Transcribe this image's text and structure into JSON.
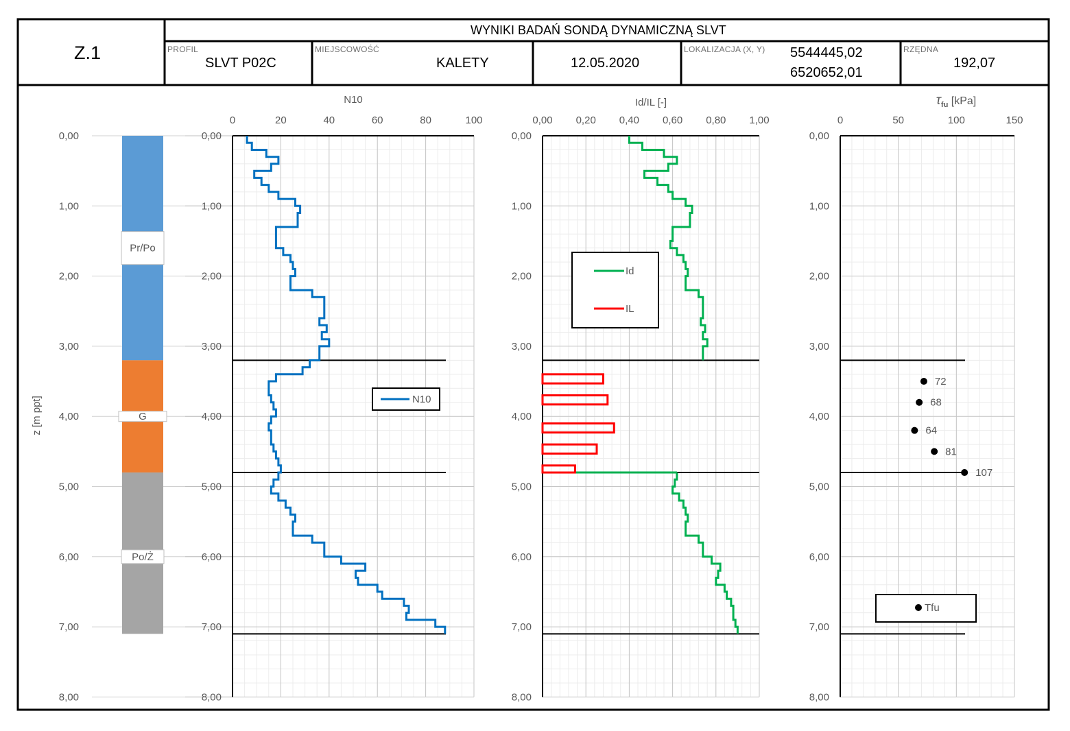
{
  "header": {
    "code": "Z.1",
    "title": "WYNIKI BADAŃ SONDĄ DYNAMICZNĄ SLVT",
    "profil_label": "PROFIL",
    "profil_value": "SLVT P02C",
    "miejscowosc_label": "MIEJSCOWOŚĆ",
    "miejscowosc_value": "KALETY",
    "date": "12.05.2020",
    "lokalizacja_label": "LOKALIZACJA (X, Y)",
    "x_value": "5544445,02",
    "y_value": "6520652,01",
    "rzedna_label": "RZĘDNA",
    "rzedna_value": "192,07"
  },
  "chart_data": [
    {
      "type": "table",
      "name": "profile",
      "ylabel": "z [m ppt]",
      "ylim": [
        0,
        8
      ],
      "yticks": [
        "0,00",
        "1,00",
        "2,00",
        "3,00",
        "4,00",
        "5,00",
        "6,00",
        "7,00",
        "8,00"
      ],
      "layers": [
        {
          "from": 0.0,
          "to": 3.2,
          "label": "Pr/Po",
          "label_at": 1.6,
          "color": "#5b9bd5"
        },
        {
          "from": 3.2,
          "to": 4.8,
          "label": "G",
          "label_at": 4.0,
          "color": "#ed7d31"
        },
        {
          "from": 4.8,
          "to": 7.1,
          "label": "Po/Ż",
          "label_at": 6.0,
          "color": "#a5a5a5"
        }
      ]
    },
    {
      "type": "line",
      "name": "N10",
      "title": "N10",
      "xlim": [
        0,
        100
      ],
      "xticks": [
        "0",
        "20",
        "40",
        "60",
        "80",
        "100"
      ],
      "ylim": [
        0,
        8
      ],
      "yticks": [
        "0,00",
        "1,00",
        "2,00",
        "3,00",
        "4,00",
        "5,00",
        "6,00",
        "7,00",
        "8,00"
      ],
      "boundaries": [
        3.2,
        4.8,
        7.1
      ],
      "legend": {
        "position": "right-middle",
        "entries": [
          "N10"
        ]
      },
      "color": "#0070c0",
      "series": [
        {
          "name": "N10",
          "steps": [
            {
              "from": 0.0,
              "to": 0.1,
              "value": 6
            },
            {
              "from": 0.1,
              "to": 0.2,
              "value": 8
            },
            {
              "from": 0.2,
              "to": 0.3,
              "value": 14
            },
            {
              "from": 0.3,
              "to": 0.4,
              "value": 19
            },
            {
              "from": 0.4,
              "to": 0.5,
              "value": 16
            },
            {
              "from": 0.5,
              "to": 0.6,
              "value": 9
            },
            {
              "from": 0.6,
              "to": 0.7,
              "value": 12
            },
            {
              "from": 0.7,
              "to": 0.8,
              "value": 15
            },
            {
              "from": 0.8,
              "to": 0.9,
              "value": 19
            },
            {
              "from": 0.9,
              "to": 1.0,
              "value": 26
            },
            {
              "from": 1.0,
              "to": 1.1,
              "value": 28
            },
            {
              "from": 1.1,
              "to": 1.3,
              "value": 27
            },
            {
              "from": 1.3,
              "to": 1.6,
              "value": 18
            },
            {
              "from": 1.6,
              "to": 1.7,
              "value": 21
            },
            {
              "from": 1.7,
              "to": 1.8,
              "value": 24
            },
            {
              "from": 1.8,
              "to": 1.9,
              "value": 25
            },
            {
              "from": 1.9,
              "to": 2.0,
              "value": 26
            },
            {
              "from": 2.0,
              "to": 2.2,
              "value": 24
            },
            {
              "from": 2.2,
              "to": 2.3,
              "value": 33
            },
            {
              "from": 2.3,
              "to": 2.6,
              "value": 38
            },
            {
              "from": 2.6,
              "to": 2.7,
              "value": 36
            },
            {
              "from": 2.7,
              "to": 2.8,
              "value": 39
            },
            {
              "from": 2.8,
              "to": 2.9,
              "value": 37
            },
            {
              "from": 2.9,
              "to": 3.0,
              "value": 40
            },
            {
              "from": 3.0,
              "to": 3.2,
              "value": 36
            },
            {
              "from": 3.2,
              "to": 3.3,
              "value": 32
            },
            {
              "from": 3.3,
              "to": 3.4,
              "value": 29
            },
            {
              "from": 3.4,
              "to": 3.5,
              "value": 18
            },
            {
              "from": 3.5,
              "to": 3.7,
              "value": 15
            },
            {
              "from": 3.7,
              "to": 3.8,
              "value": 16
            },
            {
              "from": 3.8,
              "to": 3.9,
              "value": 17
            },
            {
              "from": 3.9,
              "to": 4.0,
              "value": 18
            },
            {
              "from": 4.0,
              "to": 4.1,
              "value": 16
            },
            {
              "from": 4.1,
              "to": 4.2,
              "value": 15
            },
            {
              "from": 4.2,
              "to": 4.4,
              "value": 16
            },
            {
              "from": 4.4,
              "to": 4.5,
              "value": 17
            },
            {
              "from": 4.5,
              "to": 4.6,
              "value": 18
            },
            {
              "from": 4.6,
              "to": 4.7,
              "value": 19
            },
            {
              "from": 4.7,
              "to": 4.8,
              "value": 20
            },
            {
              "from": 4.8,
              "to": 4.9,
              "value": 19
            },
            {
              "from": 4.9,
              "to": 5.0,
              "value": 17
            },
            {
              "from": 5.0,
              "to": 5.1,
              "value": 16
            },
            {
              "from": 5.1,
              "to": 5.2,
              "value": 19
            },
            {
              "from": 5.2,
              "to": 5.3,
              "value": 22
            },
            {
              "from": 5.3,
              "to": 5.4,
              "value": 24
            },
            {
              "from": 5.4,
              "to": 5.5,
              "value": 26
            },
            {
              "from": 5.5,
              "to": 5.7,
              "value": 25
            },
            {
              "from": 5.7,
              "to": 5.8,
              "value": 33
            },
            {
              "from": 5.8,
              "to": 6.0,
              "value": 38
            },
            {
              "from": 6.0,
              "to": 6.1,
              "value": 45
            },
            {
              "from": 6.1,
              "to": 6.2,
              "value": 55
            },
            {
              "from": 6.2,
              "to": 6.3,
              "value": 51
            },
            {
              "from": 6.3,
              "to": 6.4,
              "value": 52
            },
            {
              "from": 6.4,
              "to": 6.5,
              "value": 60
            },
            {
              "from": 6.5,
              "to": 6.6,
              "value": 62
            },
            {
              "from": 6.6,
              "to": 6.7,
              "value": 71
            },
            {
              "from": 6.7,
              "to": 6.8,
              "value": 73
            },
            {
              "from": 6.8,
              "to": 6.9,
              "value": 72
            },
            {
              "from": 6.9,
              "to": 7.0,
              "value": 84
            },
            {
              "from": 7.0,
              "to": 7.1,
              "value": 88
            }
          ]
        }
      ]
    },
    {
      "type": "line",
      "name": "Id/IL",
      "title": "Id/IL [-]",
      "xlim": [
        0,
        1
      ],
      "xticks": [
        "0,00",
        "0,20",
        "0,40",
        "0,60",
        "0,80",
        "1,00"
      ],
      "ylim": [
        0,
        8
      ],
      "yticks": [
        "0,00",
        "1,00",
        "2,00",
        "3,00",
        "4,00",
        "5,00",
        "6,00",
        "7,00",
        "8,00"
      ],
      "boundaries": [
        3.2,
        4.8,
        7.1
      ],
      "legend": {
        "position": "upper-left",
        "entries": [
          "Id",
          "IL"
        ]
      },
      "series": [
        {
          "name": "Id",
          "color": "#00b050",
          "steps": [
            {
              "from": 0.0,
              "to": 0.1,
              "value": 0.4
            },
            {
              "from": 0.1,
              "to": 0.2,
              "value": 0.46
            },
            {
              "from": 0.2,
              "to": 0.3,
              "value": 0.56
            },
            {
              "from": 0.3,
              "to": 0.4,
              "value": 0.62
            },
            {
              "from": 0.4,
              "to": 0.5,
              "value": 0.58
            },
            {
              "from": 0.5,
              "to": 0.6,
              "value": 0.47
            },
            {
              "from": 0.6,
              "to": 0.7,
              "value": 0.53
            },
            {
              "from": 0.7,
              "to": 0.8,
              "value": 0.58
            },
            {
              "from": 0.8,
              "to": 0.9,
              "value": 0.6
            },
            {
              "from": 0.9,
              "to": 1.0,
              "value": 0.66
            },
            {
              "from": 1.0,
              "to": 1.1,
              "value": 0.69
            },
            {
              "from": 1.1,
              "to": 1.3,
              "value": 0.68
            },
            {
              "from": 1.3,
              "to": 1.5,
              "value": 0.6
            },
            {
              "from": 1.5,
              "to": 1.6,
              "value": 0.59
            },
            {
              "from": 1.6,
              "to": 1.7,
              "value": 0.62
            },
            {
              "from": 1.7,
              "to": 1.8,
              "value": 0.65
            },
            {
              "from": 1.8,
              "to": 1.9,
              "value": 0.66
            },
            {
              "from": 1.9,
              "to": 2.0,
              "value": 0.67
            },
            {
              "from": 2.0,
              "to": 2.2,
              "value": 0.66
            },
            {
              "from": 2.2,
              "to": 2.3,
              "value": 0.72
            },
            {
              "from": 2.3,
              "to": 2.6,
              "value": 0.74
            },
            {
              "from": 2.6,
              "to": 2.7,
              "value": 0.73
            },
            {
              "from": 2.7,
              "to": 2.8,
              "value": 0.75
            },
            {
              "from": 2.8,
              "to": 2.9,
              "value": 0.74
            },
            {
              "from": 2.9,
              "to": 3.0,
              "value": 0.76
            },
            {
              "from": 3.0,
              "to": 3.2,
              "value": 0.74
            }
          ]
        },
        {
          "name": "Id",
          "color": "#00b050",
          "steps": [
            {
              "from": 4.8,
              "to": 4.9,
              "value": 0.62
            },
            {
              "from": 4.9,
              "to": 5.0,
              "value": 0.61
            },
            {
              "from": 5.0,
              "to": 5.1,
              "value": 0.6
            },
            {
              "from": 5.1,
              "to": 5.2,
              "value": 0.63
            },
            {
              "from": 5.2,
              "to": 5.3,
              "value": 0.65
            },
            {
              "from": 5.3,
              "to": 5.4,
              "value": 0.66
            },
            {
              "from": 5.4,
              "to": 5.5,
              "value": 0.67
            },
            {
              "from": 5.5,
              "to": 5.7,
              "value": 0.66
            },
            {
              "from": 5.7,
              "to": 5.8,
              "value": 0.72
            },
            {
              "from": 5.8,
              "to": 6.0,
              "value": 0.74
            },
            {
              "from": 6.0,
              "to": 6.1,
              "value": 0.78
            },
            {
              "from": 6.1,
              "to": 6.2,
              "value": 0.82
            },
            {
              "from": 6.2,
              "to": 6.3,
              "value": 0.81
            },
            {
              "from": 6.3,
              "to": 6.4,
              "value": 0.8
            },
            {
              "from": 6.4,
              "to": 6.5,
              "value": 0.84
            },
            {
              "from": 6.5,
              "to": 6.6,
              "value": 0.85
            },
            {
              "from": 6.6,
              "to": 6.7,
              "value": 0.87
            },
            {
              "from": 6.7,
              "to": 6.8,
              "value": 0.88
            },
            {
              "from": 6.8,
              "to": 6.9,
              "value": 0.88
            },
            {
              "from": 6.9,
              "to": 7.0,
              "value": 0.89
            },
            {
              "from": 7.0,
              "to": 7.1,
              "value": 0.9
            }
          ]
        },
        {
          "name": "IL",
          "color": "#ff0000",
          "bars": [
            {
              "from": 3.4,
              "to": 3.53,
              "value": 0.28
            },
            {
              "from": 3.7,
              "to": 3.83,
              "value": 0.3
            },
            {
              "from": 4.1,
              "to": 4.23,
              "value": 0.33
            },
            {
              "from": 4.4,
              "to": 4.53,
              "value": 0.25
            },
            {
              "from": 4.7,
              "to": 4.8,
              "value": 0.15
            }
          ]
        }
      ]
    },
    {
      "type": "scatter",
      "name": "Tfu",
      "title": "τ",
      "title_sub": "fu",
      "title_unit": "[kPa]",
      "xlim": [
        0,
        150
      ],
      "xticks": [
        "0",
        "50",
        "100",
        "150"
      ],
      "ylim": [
        0,
        8
      ],
      "yticks": [
        "0,00",
        "1,00",
        "2,00",
        "3,00",
        "4,00",
        "5,00",
        "6,00",
        "7,00",
        "8,00"
      ],
      "boundaries": [
        3.2,
        4.8,
        7.1
      ],
      "legend": {
        "position": "bottom-center",
        "entries": [
          "Tfu"
        ]
      },
      "color": "#000000",
      "points": [
        {
          "z": 3.5,
          "value": 72,
          "label": "72"
        },
        {
          "z": 3.8,
          "value": 68,
          "label": "68"
        },
        {
          "z": 4.2,
          "value": 64,
          "label": "64"
        },
        {
          "z": 4.5,
          "value": 81,
          "label": "81"
        },
        {
          "z": 4.8,
          "value": 107,
          "label": "107"
        }
      ]
    }
  ]
}
